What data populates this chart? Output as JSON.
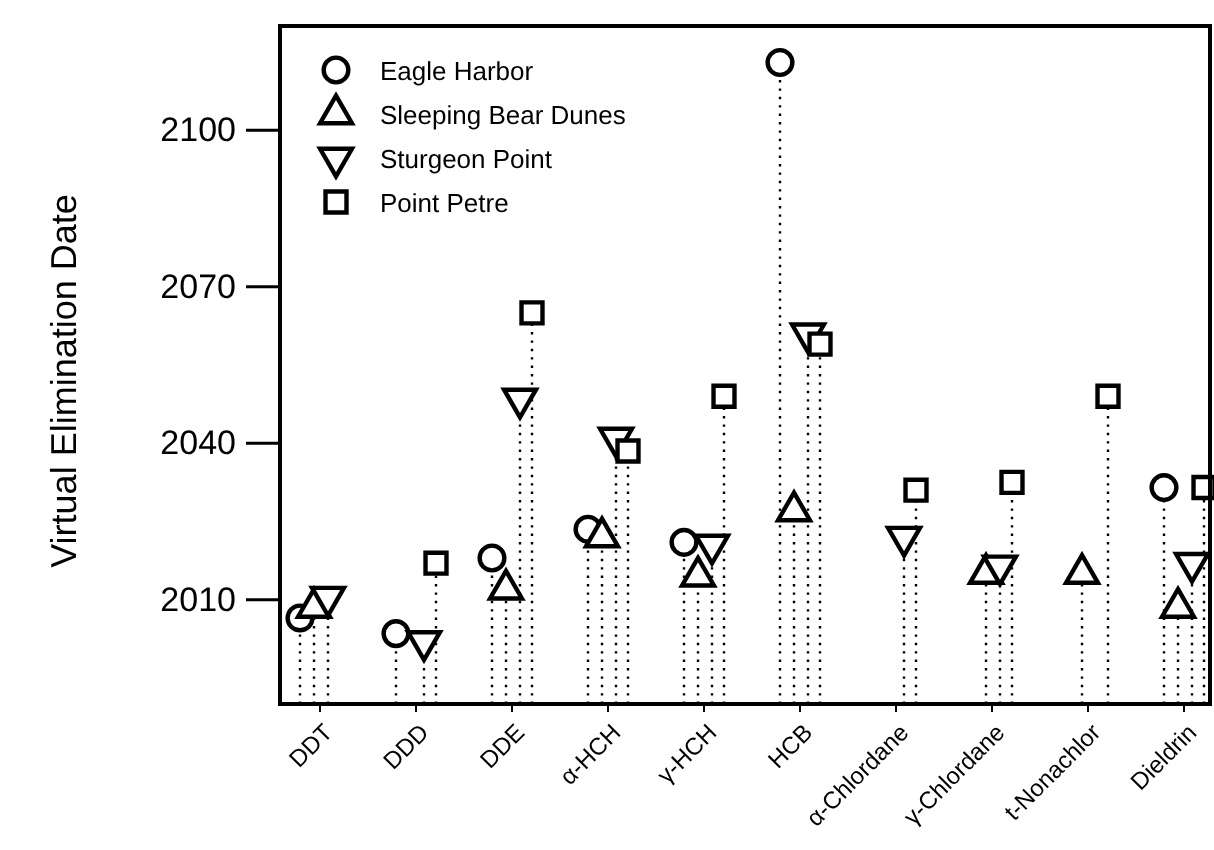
{
  "chart_data": {
    "type": "lollipop",
    "ylabel": "Virtual Elimination Date",
    "categories": [
      "DDT",
      "DDD",
      "DDE",
      "α-HCH",
      "γ-HCH",
      "HCB",
      "α-Chlordane",
      "γ-Chlordane",
      "t-Nonachlor",
      "Dieldrin"
    ],
    "ylim": [
      1990,
      2120
    ],
    "yticks": [
      2010,
      2040,
      2070,
      2100
    ],
    "line_style": "dotted",
    "legend": "top left",
    "grid": false,
    "series": [
      {
        "name": "Eagle Harbor",
        "color": "#000000",
        "marker": "circle",
        "values": [
          2006.5,
          2003.5,
          2018,
          2023.5,
          2021,
          2113,
          null,
          null,
          null,
          2031.5
        ]
      },
      {
        "name": "Sleeping Bear Dunes",
        "color": "#000000",
        "marker": "triangle",
        "values": [
          2008.5,
          null,
          2012,
          2022,
          2014.5,
          2027,
          null,
          2015,
          2015,
          2008.5
        ]
      },
      {
        "name": "Sturgeon Point",
        "color": "#000000",
        "marker": "triangle-down",
        "values": [
          2010.5,
          2002,
          2048.5,
          2041,
          2020.5,
          2061,
          2022,
          2016.5,
          null,
          2017
        ]
      },
      {
        "name": "Point Petre",
        "color": "#000000",
        "marker": "square",
        "values": [
          null,
          2017,
          2065,
          2038.5,
          2049,
          2059,
          2031,
          2032.5,
          2049,
          2031.5
        ]
      }
    ]
  }
}
